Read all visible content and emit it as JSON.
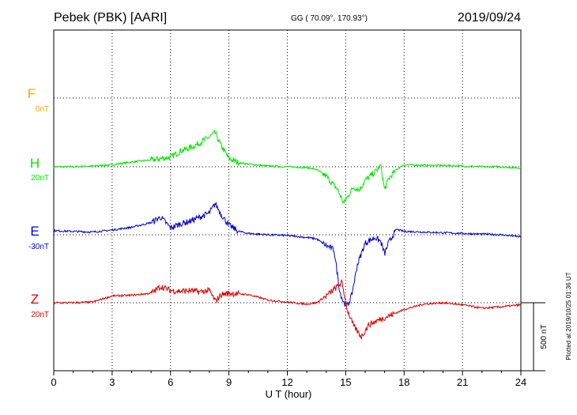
{
  "header": {
    "station": "Pebek (PBK)  [AARI]",
    "coords": "GG ( 70.09°, 170.93°)",
    "date": "2019/09/24"
  },
  "plotted_at": "Plotted at 2019/10/25 01:36 UT",
  "chart_data": {
    "type": "line",
    "xlabel": "U T (hour)",
    "xlim": [
      0,
      24
    ],
    "xticks": [
      "0",
      "3",
      "6",
      "9",
      "12",
      "15",
      "18",
      "21",
      "24"
    ],
    "scale_bar": {
      "label": "500 nT",
      "value_nT": 500
    },
    "series": [
      {
        "name": "F",
        "offset_label": "0nT",
        "color": "#ffa500",
        "t": [],
        "v": []
      },
      {
        "name": "H",
        "offset_label": "20nT",
        "color": "#00e600",
        "t": [
          0,
          1,
          2,
          3,
          4,
          5,
          6,
          6.5,
          7,
          7.5,
          8,
          8.3,
          8.5,
          9,
          9.5,
          10,
          11,
          12,
          13,
          13.5,
          14,
          14.3,
          14.6,
          14.9,
          15.1,
          15.4,
          15.7,
          16,
          16.5,
          16.8,
          17,
          17.2,
          17.6,
          18,
          19,
          20,
          21,
          22,
          23,
          24
        ],
        "v": [
          0,
          0,
          5,
          15,
          35,
          50,
          70,
          115,
          140,
          175,
          220,
          250,
          180,
          60,
          30,
          20,
          5,
          0,
          -5,
          -20,
          -70,
          -120,
          -170,
          -270,
          -220,
          -150,
          -170,
          -100,
          -40,
          10,
          -170,
          -90,
          -20,
          15,
          10,
          10,
          5,
          0,
          0,
          -10
        ]
      },
      {
        "name": "E",
        "offset_label": "-30nT",
        "color": "#0000cc",
        "t": [
          0,
          1,
          2,
          3,
          4,
          5,
          5.5,
          6,
          6.5,
          7,
          7.5,
          8,
          8.3,
          8.6,
          9,
          9.5,
          10,
          11,
          12,
          13,
          13.5,
          14,
          14.4,
          14.7,
          14.9,
          15.1,
          15.3,
          15.6,
          16,
          16.5,
          16.8,
          17,
          17.2,
          17.6,
          18,
          19,
          20,
          21,
          22,
          23,
          24
        ],
        "v": [
          30,
          25,
          20,
          35,
          55,
          90,
          130,
          50,
          80,
          100,
          130,
          160,
          230,
          150,
          70,
          25,
          10,
          0,
          -5,
          -20,
          -30,
          -80,
          -110,
          -420,
          -500,
          -520,
          -450,
          -220,
          -60,
          -20,
          -50,
          -140,
          -60,
          40,
          25,
          20,
          15,
          10,
          5,
          0,
          -15
        ]
      },
      {
        "name": "Z",
        "offset_label": "20nT",
        "color": "#e00000",
        "t": [
          0,
          1,
          2,
          3,
          4,
          5,
          5.5,
          6,
          6.5,
          7,
          7.5,
          8,
          8.3,
          8.6,
          9,
          10,
          11,
          12,
          13,
          13.5,
          14,
          14.5,
          14.8,
          15.1,
          15.4,
          15.8,
          16.2,
          16.8,
          17.5,
          18,
          19,
          20,
          21,
          22,
          23,
          24
        ],
        "v": [
          0,
          0,
          5,
          50,
          55,
          70,
          120,
          90,
          85,
          90,
          80,
          90,
          10,
          60,
          70,
          60,
          20,
          5,
          -10,
          0,
          50,
          110,
          150,
          -60,
          -170,
          -250,
          -160,
          -120,
          -80,
          -50,
          -10,
          0,
          -15,
          -40,
          -30,
          -15
        ]
      }
    ]
  }
}
